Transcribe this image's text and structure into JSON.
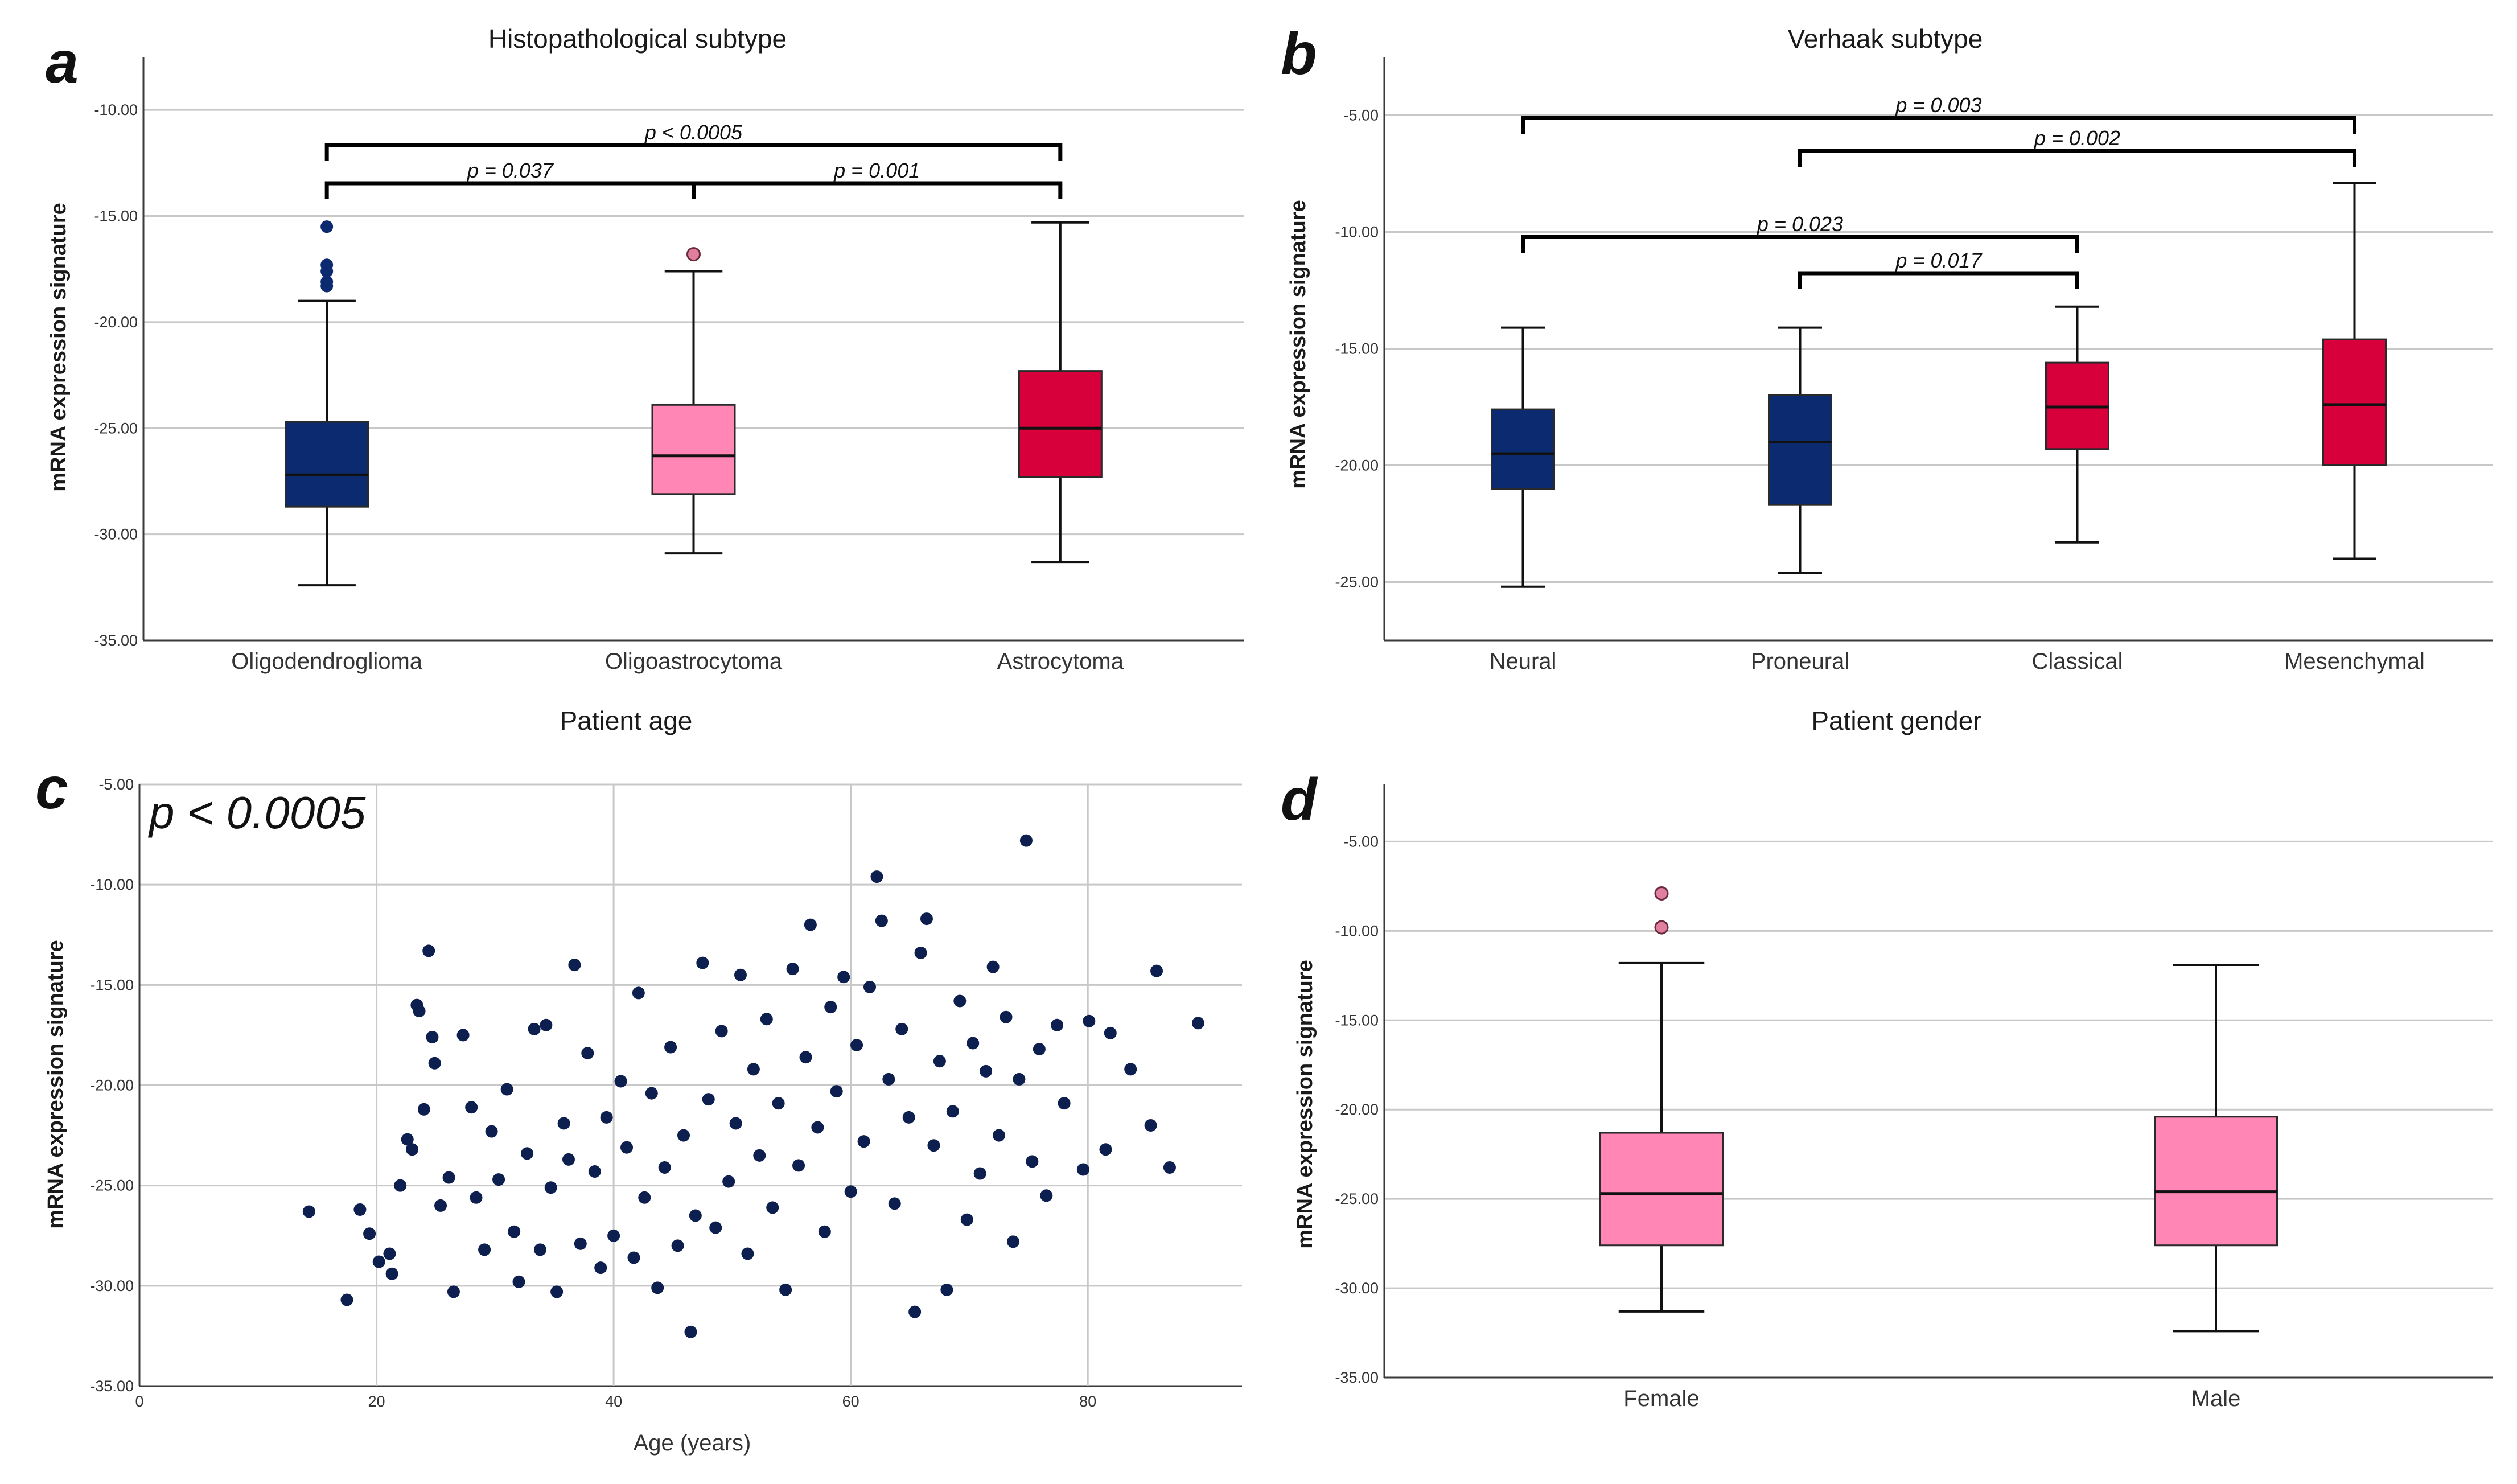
{
  "colors": {
    "navy": "#0b2a6f",
    "pink": "#ff86b5",
    "red": "#d8003a",
    "outlier_navy": "#0b2a6f",
    "outlier_pink": "#e07f9f",
    "scatter": "#0d1f4f",
    "grid": "#c8c8c8"
  },
  "panels": {
    "a": {
      "letter": "a",
      "title": "Histopathological subtype",
      "ylabel": "mRNA expression signature"
    },
    "b": {
      "letter": "b",
      "title": "Verhaak subtype",
      "ylabel": "mRNA expression signature"
    },
    "c": {
      "letter": "c",
      "title": "Patient age",
      "ylabel": "mRNA expression signature",
      "xlabel": "Age (years)",
      "annotation": "p < 0.0005"
    },
    "d": {
      "letter": "d",
      "title": "Patient gender",
      "ylabel": "mRNA expression signature"
    }
  },
  "chart_data": [
    {
      "panel": "a",
      "type": "box",
      "title": "Histopathological subtype",
      "ylabel": "mRNA expression signature",
      "ylim": [
        -35,
        -7.5
      ],
      "yticks": [
        "-10.00",
        "-15.00",
        "-20.00",
        "-25.00",
        "-30.00",
        "-35.00"
      ],
      "categories": [
        "Oligodendroglioma",
        "Oligoastrocytoma",
        "Astrocytoma"
      ],
      "boxes": [
        {
          "category": "Oligodendroglioma",
          "min": -32.4,
          "q1": -28.7,
          "median": -27.2,
          "q3": -24.7,
          "max": -19.0,
          "outliers": [
            -15.5,
            -17.3,
            -17.6,
            -18.1,
            -18.3
          ],
          "color": "navy"
        },
        {
          "category": "Oligoastrocytoma",
          "min": -30.9,
          "q1": -28.1,
          "median": -26.3,
          "q3": -23.9,
          "max": -17.6,
          "outliers": [
            -16.8
          ],
          "color": "pink"
        },
        {
          "category": "Astrocytoma",
          "min": -31.3,
          "q1": -27.3,
          "median": -25.0,
          "q3": -22.3,
          "max": -15.3,
          "outliers": [],
          "color": "red"
        }
      ],
      "comparisons": [
        {
          "from": 0,
          "to": 1,
          "label": "p = 0.037"
        },
        {
          "from": 1,
          "to": 2,
          "label": "p = 0.001"
        },
        {
          "from": 0,
          "to": 2,
          "label": "p < 0.0005"
        }
      ]
    },
    {
      "panel": "b",
      "type": "box",
      "title": "Verhaak subtype",
      "ylabel": "mRNA expression signature",
      "ylim": [
        -27.5,
        -2.5
      ],
      "yticks": [
        "-5.00",
        "-10.00",
        "-15.00",
        "-20.00",
        "-25.00"
      ],
      "categories": [
        "Neural",
        "Proneural",
        "Classical",
        "Mesenchymal"
      ],
      "boxes": [
        {
          "category": "Neural",
          "min": -25.2,
          "q1": -21.0,
          "median": -19.5,
          "q3": -17.6,
          "max": -14.1,
          "outliers": [],
          "color": "navy"
        },
        {
          "category": "Proneural",
          "min": -24.6,
          "q1": -21.7,
          "median": -19.0,
          "q3": -17.0,
          "max": -14.1,
          "outliers": [],
          "color": "navy"
        },
        {
          "category": "Classical",
          "min": -23.3,
          "q1": -19.3,
          "median": -17.5,
          "q3": -15.6,
          "max": -13.2,
          "outliers": [],
          "color": "red"
        },
        {
          "category": "Mesenchymal",
          "min": -24.0,
          "q1": -20.0,
          "median": -17.4,
          "q3": -14.6,
          "max": -7.9,
          "outliers": [],
          "color": "red"
        }
      ],
      "comparisons": [
        {
          "from": 1,
          "to": 2,
          "label": "p = 0.017"
        },
        {
          "from": 0,
          "to": 2,
          "label": "p = 0.023"
        },
        {
          "from": 1,
          "to": 3,
          "label": "p = 0.002"
        },
        {
          "from": 0,
          "to": 3,
          "label": "p = 0.003"
        }
      ]
    },
    {
      "panel": "c",
      "type": "scatter",
      "title": "Patient age",
      "xlabel": "Age (years)",
      "ylabel": "mRNA expression signature",
      "xlim": [
        0,
        93
      ],
      "ylim": [
        -35,
        -5
      ],
      "xticks": [
        "0",
        "20",
        "40",
        "60",
        "80"
      ],
      "yticks": [
        "-5.00",
        "-10.00",
        "-15.00",
        "-20.00",
        "-25.00",
        "-30.00",
        "-35.00"
      ],
      "annotation": "p < 0.0005",
      "points": [
        [
          14.3,
          -26.3
        ],
        [
          17.5,
          -30.7
        ],
        [
          18.6,
          -26.2
        ],
        [
          19.4,
          -27.4
        ],
        [
          20.2,
          -28.8
        ],
        [
          21.1,
          -28.4
        ],
        [
          21.3,
          -29.4
        ],
        [
          22.0,
          -25.0
        ],
        [
          22.6,
          -22.7
        ],
        [
          23.0,
          -23.2
        ],
        [
          23.4,
          -16.0
        ],
        [
          23.6,
          -16.3
        ],
        [
          24.0,
          -21.2
        ],
        [
          24.4,
          -13.3
        ],
        [
          24.7,
          -17.6
        ],
        [
          24.9,
          -18.9
        ],
        [
          25.4,
          -26.0
        ],
        [
          26.1,
          -24.6
        ],
        [
          26.5,
          -30.3
        ],
        [
          27.3,
          -17.5
        ],
        [
          28.0,
          -21.1
        ],
        [
          28.4,
          -25.6
        ],
        [
          29.1,
          -28.2
        ],
        [
          29.7,
          -22.3
        ],
        [
          30.3,
          -24.7
        ],
        [
          31.0,
          -20.2
        ],
        [
          31.6,
          -27.3
        ],
        [
          32.0,
          -29.8
        ],
        [
          32.7,
          -23.4
        ],
        [
          33.3,
          -17.2
        ],
        [
          33.8,
          -28.2
        ],
        [
          34.3,
          -17.0
        ],
        [
          34.7,
          -25.1
        ],
        [
          35.2,
          -30.3
        ],
        [
          35.8,
          -21.9
        ],
        [
          36.2,
          -23.7
        ],
        [
          36.7,
          -14.0
        ],
        [
          37.2,
          -27.9
        ],
        [
          37.8,
          -18.4
        ],
        [
          38.4,
          -24.3
        ],
        [
          38.9,
          -29.1
        ],
        [
          39.4,
          -21.6
        ],
        [
          40.0,
          -27.5
        ],
        [
          40.6,
          -19.8
        ],
        [
          41.1,
          -23.1
        ],
        [
          41.7,
          -28.6
        ],
        [
          42.1,
          -15.4
        ],
        [
          42.6,
          -25.6
        ],
        [
          43.2,
          -20.4
        ],
        [
          43.7,
          -30.1
        ],
        [
          44.3,
          -24.1
        ],
        [
          44.8,
          -18.1
        ],
        [
          45.4,
          -28.0
        ],
        [
          45.9,
          -22.5
        ],
        [
          46.5,
          -32.3
        ],
        [
          46.9,
          -26.5
        ],
        [
          47.5,
          -13.9
        ],
        [
          48.0,
          -20.7
        ],
        [
          48.6,
          -27.1
        ],
        [
          49.1,
          -17.3
        ],
        [
          49.7,
          -24.8
        ],
        [
          50.3,
          -21.9
        ],
        [
          50.7,
          -14.5
        ],
        [
          51.3,
          -28.4
        ],
        [
          51.8,
          -19.2
        ],
        [
          52.3,
          -23.5
        ],
        [
          52.9,
          -16.7
        ],
        [
          53.4,
          -26.1
        ],
        [
          53.9,
          -20.9
        ],
        [
          54.5,
          -30.2
        ],
        [
          55.1,
          -14.2
        ],
        [
          55.6,
          -24.0
        ],
        [
          56.2,
          -18.6
        ],
        [
          56.6,
          -12.0
        ],
        [
          57.2,
          -22.1
        ],
        [
          57.8,
          -27.3
        ],
        [
          58.3,
          -16.1
        ],
        [
          58.8,
          -20.3
        ],
        [
          59.4,
          -14.6
        ],
        [
          60.0,
          -25.3
        ],
        [
          60.5,
          -18.0
        ],
        [
          61.1,
          -22.8
        ],
        [
          61.6,
          -15.1
        ],
        [
          62.2,
          -9.6
        ],
        [
          62.6,
          -11.8
        ],
        [
          63.2,
          -19.7
        ],
        [
          63.7,
          -25.9
        ],
        [
          64.3,
          -17.2
        ],
        [
          64.9,
          -21.6
        ],
        [
          65.4,
          -31.3
        ],
        [
          65.9,
          -13.4
        ],
        [
          66.4,
          -11.7
        ],
        [
          67.0,
          -23.0
        ],
        [
          67.5,
          -18.8
        ],
        [
          68.1,
          -30.2
        ],
        [
          68.6,
          -21.3
        ],
        [
          69.2,
          -15.8
        ],
        [
          69.8,
          -26.7
        ],
        [
          70.3,
          -17.9
        ],
        [
          70.9,
          -24.4
        ],
        [
          71.4,
          -19.3
        ],
        [
          72.0,
          -14.1
        ],
        [
          72.5,
          -22.5
        ],
        [
          73.1,
          -16.6
        ],
        [
          73.7,
          -27.8
        ],
        [
          74.2,
          -19.7
        ],
        [
          74.8,
          -7.8
        ],
        [
          75.3,
          -23.8
        ],
        [
          75.9,
          -18.2
        ],
        [
          76.5,
          -25.5
        ],
        [
          77.4,
          -17.0
        ],
        [
          78.0,
          -20.9
        ],
        [
          79.6,
          -24.2
        ],
        [
          80.1,
          -16.8
        ],
        [
          81.5,
          -23.2
        ],
        [
          81.9,
          -17.4
        ],
        [
          83.6,
          -19.2
        ],
        [
          85.3,
          -22.0
        ],
        [
          85.8,
          -14.3
        ],
        [
          86.9,
          -24.1
        ],
        [
          89.3,
          -16.9
        ]
      ]
    },
    {
      "panel": "d",
      "type": "box",
      "title": "Patient gender",
      "ylabel": "mRNA expression signature",
      "ylim": [
        -35,
        -1.8
      ],
      "yticks": [
        "-5.00",
        "-10.00",
        "-15.00",
        "-20.00",
        "-25.00",
        "-30.00",
        "-35.00"
      ],
      "categories": [
        "Female",
        "Male"
      ],
      "boxes": [
        {
          "category": "Female",
          "min": -31.3,
          "q1": -27.6,
          "median": -24.7,
          "q3": -21.3,
          "max": -11.8,
          "outliers": [
            -7.9,
            -9.8
          ],
          "color": "pink"
        },
        {
          "category": "Male",
          "min": -32.4,
          "q1": -27.6,
          "median": -24.6,
          "q3": -20.4,
          "max": -11.9,
          "outliers": [],
          "color": "pink"
        }
      ],
      "comparisons": []
    }
  ]
}
